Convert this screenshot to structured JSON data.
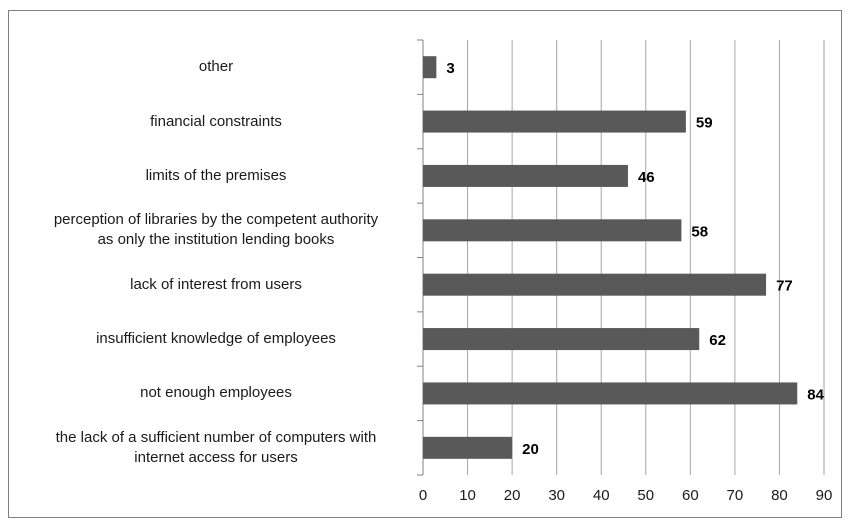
{
  "chart_data": {
    "type": "bar",
    "orientation": "horizontal",
    "categories": [
      "other",
      "financial constraints",
      "limits of the premises",
      "perception of libraries by the competent authority as only the institution lending books",
      "lack of interest from users",
      "insufficient knowledge of employees",
      "not enough employees",
      "the lack of a sufficient number of computers with internet access for users"
    ],
    "category_lines": [
      [
        "other"
      ],
      [
        "financial constraints"
      ],
      [
        "limits of the premises"
      ],
      [
        "perception of libraries by the competent authority",
        "as only the institution lending books"
      ],
      [
        "lack of interest from users"
      ],
      [
        "insufficient knowledge of employees"
      ],
      [
        "not enough employees"
      ],
      [
        "the lack of a sufficient number of computers with",
        "internet access for users"
      ]
    ],
    "values": [
      3,
      59,
      46,
      58,
      77,
      62,
      84,
      20
    ],
    "value_labels": [
      "3",
      "59",
      "46",
      "58",
      "77",
      "62",
      "84",
      "20"
    ],
    "xlim": [
      0,
      90
    ],
    "xticks": [
      "0",
      "10",
      "20",
      "30",
      "40",
      "50",
      "60",
      "70",
      "80",
      "90"
    ],
    "grid": "vertical",
    "bar_color": "#595959",
    "grid_color": "#a6a6a6",
    "title": "",
    "xlabel": "",
    "ylabel": ""
  }
}
